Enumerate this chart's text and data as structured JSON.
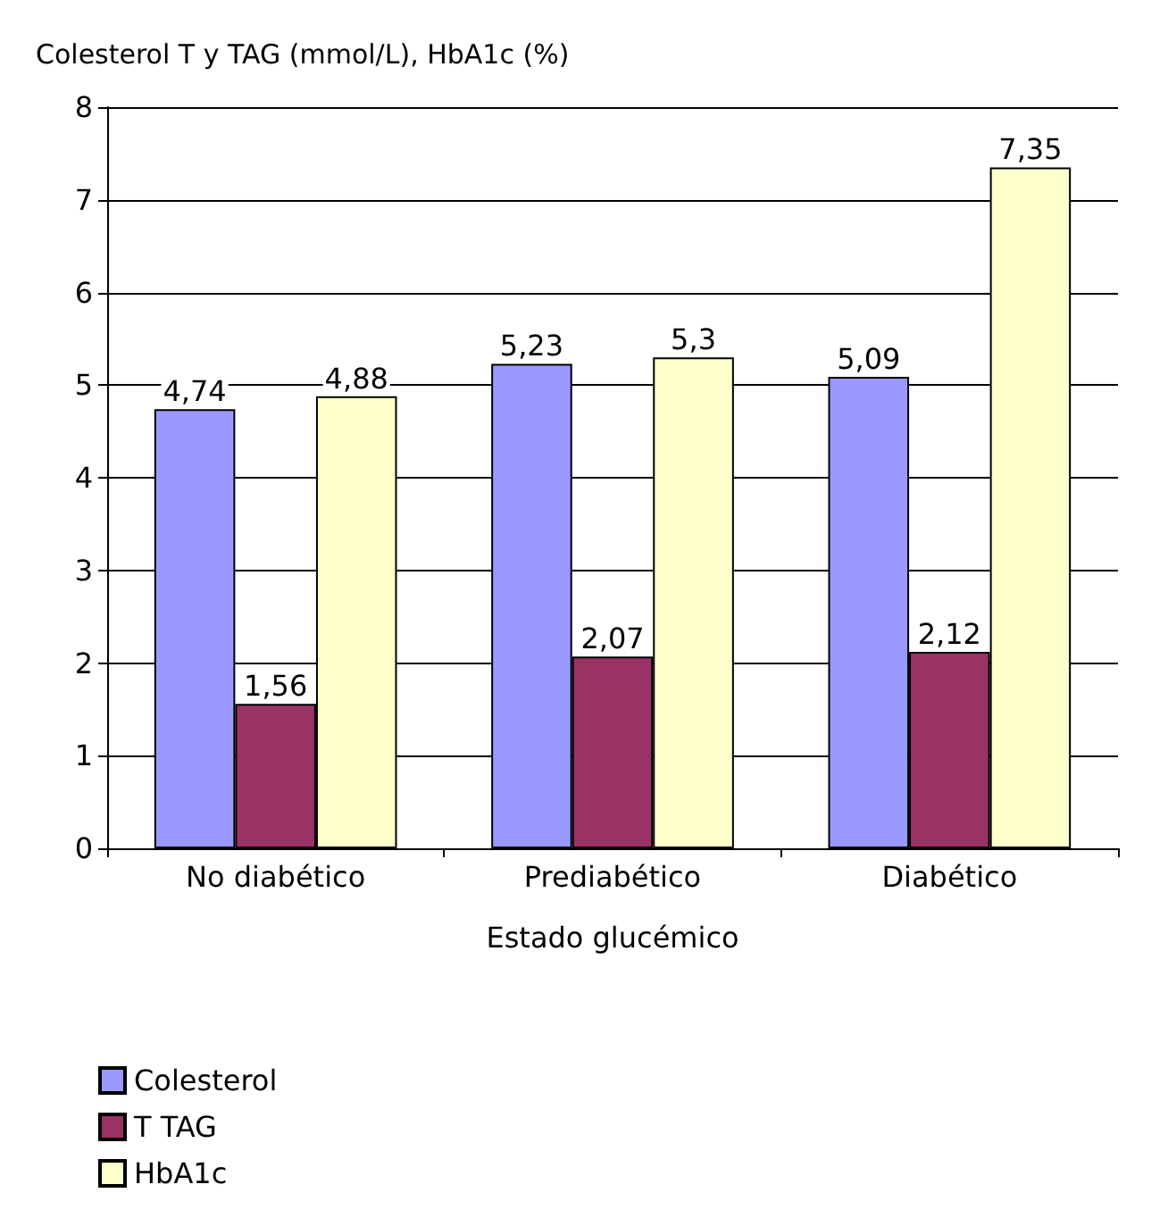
{
  "chart_data": {
    "type": "bar",
    "ylabel": "Colesterol T y TAG (mmol/L), HbA1c (%)",
    "xlabel": "Estado glucémico",
    "categories": [
      "No diabético",
      "Prediabético",
      "Diabético"
    ],
    "series": [
      {
        "name": "Colesterol",
        "color": "#9999ff",
        "values": [
          4.74,
          5.23,
          5.09
        ],
        "value_labels": [
          "4,74",
          "5,23",
          "5,09"
        ]
      },
      {
        "name": "T TAG",
        "color": "#993366",
        "values": [
          1.56,
          2.07,
          2.12
        ],
        "value_labels": [
          "1,56",
          "2,07",
          "2,12"
        ]
      },
      {
        "name": "HbA1c",
        "color": "#ffffcc",
        "values": [
          4.88,
          5.3,
          7.35
        ],
        "value_labels": [
          "4,88",
          "5,3",
          "7,35"
        ]
      }
    ],
    "ylim": [
      0,
      8
    ],
    "yticks": [
      0,
      1,
      2,
      3,
      4,
      5,
      6,
      7,
      8
    ],
    "grid": "y",
    "legend": "bottom left"
  }
}
